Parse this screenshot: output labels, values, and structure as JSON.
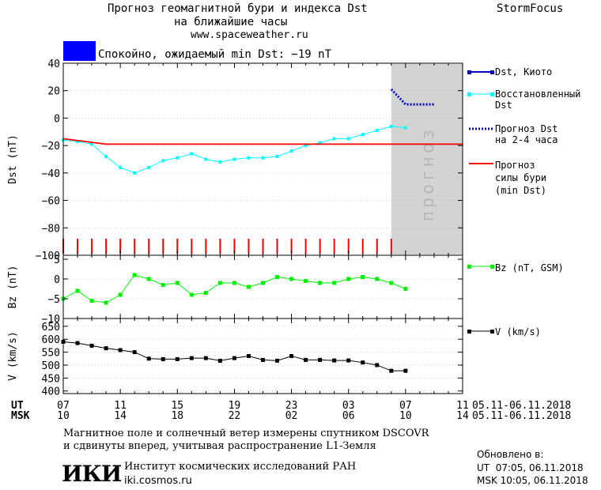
{
  "header": {
    "title_line1": "Прогноз геомагнитной бури и индекса Dst",
    "title_line2": "на ближайшие часы",
    "website": "www.spaceweather.ru",
    "brand": "StormFocus"
  },
  "status": {
    "color": "#0000ff",
    "text": "Спокойно, ожидаемый min Dst: −19 nT"
  },
  "colors": {
    "dst_kyoto": "#0000cc",
    "dst_restored": "#00ffff",
    "dst_forecast": "#0000cc",
    "storm_forecast": "#ff0000",
    "bz": "#00ee00",
    "v": "#000000",
    "forecast_zone": "#d3d3d3"
  },
  "legend": {
    "dst_kyoto": "Dst, Киото",
    "dst_restored_1": "Восстановленный",
    "dst_restored_2": "Dst",
    "dst_forecast_1": "Прогноз Dst",
    "dst_forecast_2": "на 2-4 часа",
    "storm_1": "Прогноз",
    "storm_2": "силы бури",
    "storm_3": "(min Dst)",
    "bz": "Bz (nT, GSM)",
    "v": "V (km/s)"
  },
  "forecast_zone_label": "прогноз",
  "time_axis": {
    "ut_label": "UT",
    "msk_label": "MSK",
    "ut_ticks": [
      "07",
      "11",
      "15",
      "19",
      "23",
      "03",
      "07",
      "11"
    ],
    "msk_ticks": [
      "10",
      "14",
      "18",
      "22",
      "02",
      "06",
      "10",
      "14"
    ],
    "date_range_ut": "05.11-06.11.2018",
    "date_range_msk": "05.11-06.11.2018"
  },
  "chart_data": [
    {
      "type": "line",
      "ylabel": "Dst (nT)",
      "ylim": [
        -100,
        40
      ],
      "yticks": [
        40,
        20,
        0,
        -20,
        -40,
        -60,
        -80,
        -100
      ],
      "x_unit": "hours from 07 UT 05.11.2018",
      "xlim": [
        0,
        28
      ],
      "forecast_zone": [
        23,
        28
      ],
      "series": [
        {
          "name": "Восстановленный Dst",
          "x": [
            0,
            1,
            2,
            3,
            4,
            5,
            6,
            7,
            8,
            9,
            10,
            11,
            12,
            13,
            14,
            15,
            16,
            17,
            18,
            19,
            20,
            21,
            22,
            23,
            24
          ],
          "y": [
            -16,
            -17,
            -19,
            -28,
            -36,
            -40,
            -36,
            -31,
            -29,
            -26,
            -30,
            -32,
            -30,
            -29,
            -29,
            -28,
            -24,
            -20,
            -18,
            -15,
            -15,
            -12,
            -9,
            -6,
            -7
          ]
        },
        {
          "name": "Прогноз силы бури (min Dst)",
          "x": [
            0,
            3,
            28
          ],
          "y": [
            -15,
            -19,
            -19
          ]
        },
        {
          "name": "Прогноз Dst на 2-4 часа",
          "x": [
            23,
            24,
            25,
            26
          ],
          "y": [
            21,
            10,
            10,
            10
          ]
        }
      ],
      "storm_ticks_x": [
        0,
        1,
        2,
        3,
        4,
        5,
        6,
        7,
        8,
        9,
        10,
        11,
        12,
        13,
        14,
        15,
        16,
        17,
        18,
        19,
        20,
        21,
        22,
        23
      ]
    },
    {
      "type": "line",
      "ylabel": "Bz (nT)",
      "ylim": [
        -10,
        6
      ],
      "yticks": [
        5,
        0,
        -5,
        -10
      ],
      "series": [
        {
          "name": "Bz (nT, GSM)",
          "x": [
            0,
            1,
            2,
            3,
            4,
            5,
            6,
            7,
            8,
            9,
            10,
            11,
            12,
            13,
            14,
            15,
            16,
            17,
            18,
            19,
            20,
            21,
            22,
            23,
            24
          ],
          "y": [
            -5,
            -3,
            -5.5,
            -6,
            -4,
            1,
            0,
            -1.5,
            -1,
            -4,
            -3.5,
            -1,
            -1,
            -2,
            -1,
            0.5,
            0,
            -0.5,
            -1,
            -1,
            0,
            0.5,
            0,
            -1,
            -2.5
          ]
        }
      ]
    },
    {
      "type": "line",
      "ylabel": "V (km/s)",
      "ylim": [
        390,
        680
      ],
      "yticks": [
        650,
        600,
        550,
        500,
        450,
        400
      ],
      "series": [
        {
          "name": "V (km/s)",
          "x": [
            0,
            1,
            2,
            3,
            4,
            5,
            6,
            7,
            8,
            9,
            10,
            11,
            12,
            13,
            14,
            15,
            16,
            17,
            18,
            19,
            20,
            21,
            22,
            23,
            24
          ],
          "y": [
            590,
            585,
            575,
            565,
            558,
            550,
            525,
            523,
            523,
            527,
            527,
            517,
            527,
            535,
            520,
            517,
            535,
            520,
            520,
            518,
            518,
            510,
            500,
            478,
            478
          ]
        }
      ]
    }
  ],
  "footer": {
    "note_line1": "Магнитное поле и солнечный ветер измерены спутником DSCOVR",
    "note_line2": "и сдвинуты вперед, учитывая распространение L1-Земля",
    "logo": "ИКИ",
    "institute": "Институт космических исследований РАН",
    "institute_site": "iki.cosmos.ru",
    "updated_label": "Обновлено в:",
    "updated_ut": "UT  07:05, 06.11.2018",
    "updated_msk": "MSK 10:05, 06.11.2018"
  }
}
